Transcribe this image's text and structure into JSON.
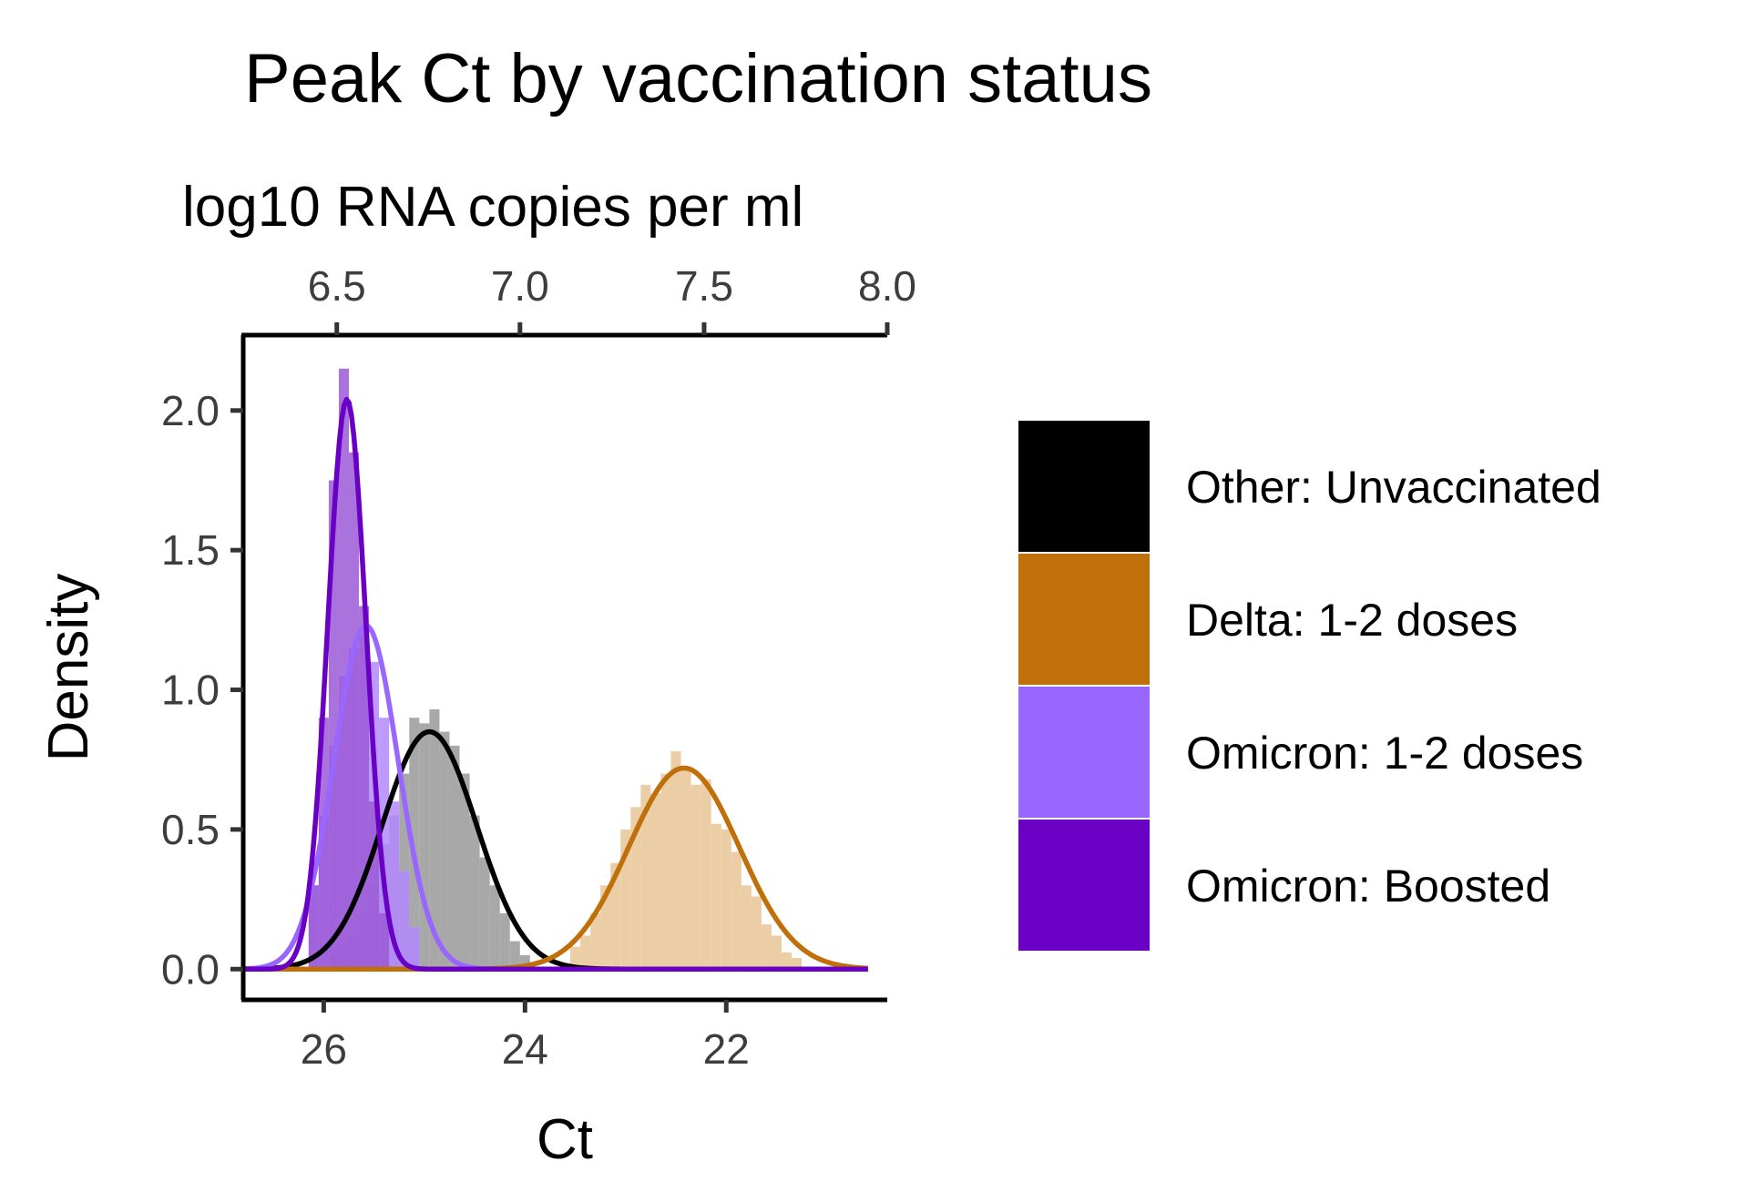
{
  "chart_data": {
    "type": "histogram-density",
    "title": "Peak Ct by vaccination status",
    "xlabel": "Ct",
    "ylabel": "Density",
    "x_reversed": true,
    "xlim": [
      26.8,
      20.4
    ],
    "ylim": [
      -0.11,
      2.27
    ],
    "x_ticks": [
      {
        "value": 26,
        "label": "26"
      },
      {
        "value": 24,
        "label": "24"
      },
      {
        "value": 22,
        "label": "22"
      }
    ],
    "y_ticks": [
      {
        "value": 0.0,
        "label": "0.0"
      },
      {
        "value": 0.5,
        "label": "0.5"
      },
      {
        "value": 1.0,
        "label": "1.0"
      },
      {
        "value": 1.5,
        "label": "1.5"
      },
      {
        "value": 2.0,
        "label": "2.0"
      }
    ],
    "secondary_x_axis": {
      "label": "log10 RNA copies per ml",
      "ticks": [
        {
          "label": "6.5",
          "ct": 25.87
        },
        {
          "label": "7.0",
          "ct": 24.05
        },
        {
          "label": "7.5",
          "ct": 22.22
        },
        {
          "label": "8.0",
          "ct": 20.4
        }
      ]
    },
    "grid": false,
    "legend_position": "right",
    "series": [
      {
        "name": "Other: Unvaccinated",
        "color": "#000000",
        "hist_color": "#999999",
        "density_peak": {
          "ct": 24.95,
          "density": 0.85,
          "sd": 0.47
        },
        "histogram": {
          "bins": [
            25.9,
            25.8,
            25.7,
            25.6,
            25.5,
            25.4,
            25.3,
            25.2,
            25.1,
            25.0,
            24.9,
            24.8,
            24.7,
            24.6,
            24.5,
            24.4,
            24.3,
            24.2,
            24.1,
            24.0
          ],
          "densities": [
            0.05,
            0.08,
            0.12,
            0.2,
            0.3,
            0.45,
            0.55,
            0.7,
            0.9,
            0.88,
            0.93,
            0.85,
            0.8,
            0.7,
            0.55,
            0.4,
            0.3,
            0.2,
            0.1,
            0.05
          ]
        }
      },
      {
        "name": "Delta: 1-2 doses",
        "color": "#c0700a",
        "hist_color": "#e8c597",
        "density_peak": {
          "ct": 22.42,
          "density": 0.72,
          "sd": 0.55
        },
        "histogram": {
          "bins": [
            23.5,
            23.4,
            23.3,
            23.2,
            23.1,
            23.0,
            22.9,
            22.8,
            22.7,
            22.6,
            22.5,
            22.4,
            22.3,
            22.2,
            22.1,
            22.0,
            21.9,
            21.8,
            21.7,
            21.6,
            21.5,
            21.4,
            21.3
          ],
          "densities": [
            0.08,
            0.12,
            0.2,
            0.3,
            0.38,
            0.5,
            0.58,
            0.66,
            0.63,
            0.7,
            0.78,
            0.72,
            0.66,
            0.68,
            0.52,
            0.5,
            0.42,
            0.3,
            0.26,
            0.16,
            0.12,
            0.06,
            0.04
          ]
        }
      },
      {
        "name": "Omicron: 1-2 doses",
        "color": "#9966ff",
        "hist_color": "#b388ff",
        "density_peak": {
          "ct": 25.58,
          "density": 1.23,
          "sd": 0.32
        },
        "histogram": {
          "bins": [
            26.1,
            26.0,
            25.9,
            25.8,
            25.7,
            25.6,
            25.5,
            25.4,
            25.3,
            25.2,
            25.1
          ],
          "densities": [
            0.3,
            0.55,
            0.8,
            1.05,
            1.15,
            1.2,
            1.1,
            0.9,
            0.6,
            0.35,
            0.15
          ]
        }
      },
      {
        "name": "Omicron: Boosted",
        "color": "#6a00c4",
        "hist_color": "#9b59d6",
        "density_peak": {
          "ct": 25.77,
          "density": 2.04,
          "sd": 0.19
        },
        "histogram": {
          "bins": [
            26.1,
            26.0,
            25.9,
            25.8,
            25.7,
            25.6,
            25.5,
            25.4
          ],
          "densities": [
            0.3,
            0.9,
            1.75,
            2.15,
            1.85,
            1.3,
            0.6,
            0.2
          ]
        }
      }
    ]
  }
}
